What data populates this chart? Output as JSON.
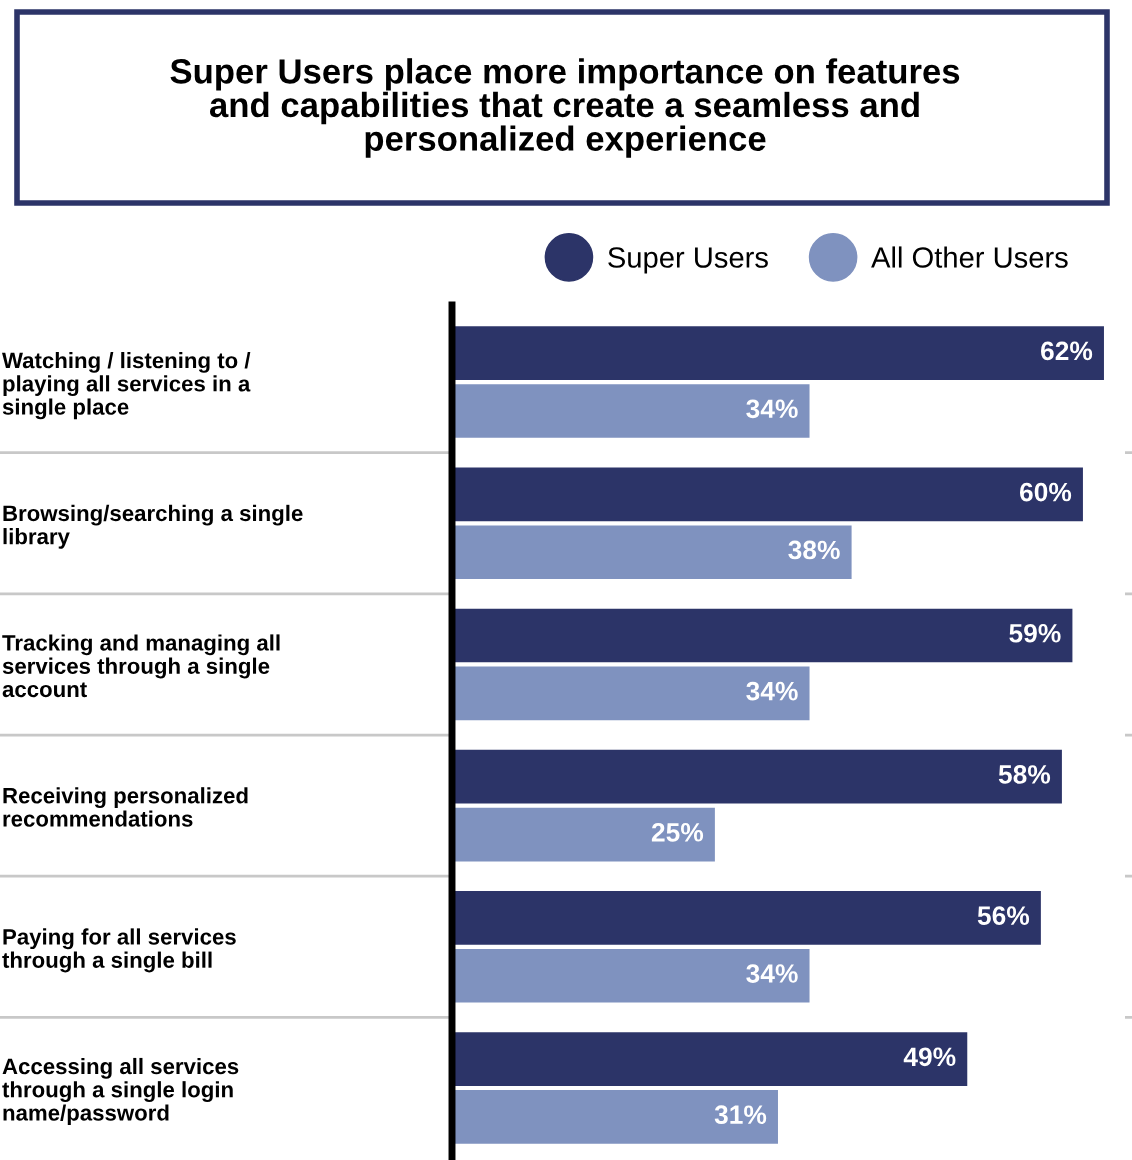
{
  "chart_data": {
    "type": "bar",
    "orientation": "horizontal",
    "title": "Super Users place more importance on features\nand capabilities that create a seamless and\npersonalized experience",
    "categories": [
      "Watching / listening to /\nplaying all services in a\nsingle place",
      "Browsing/searching a single\nlibrary",
      "Tracking and managing all\nservices through a single\naccount",
      "Receiving personalized\nrecommendations",
      "Paying for all services\nthrough a single bill",
      "Accessing all services\nthrough a single login\nname/password"
    ],
    "series": [
      {
        "name": "Super Users",
        "color": "#2c3468",
        "values": [
          62,
          60,
          59,
          58,
          56,
          49
        ],
        "value_labels": [
          "62%",
          "60%",
          "59%",
          "58%",
          "56%",
          "49%"
        ]
      },
      {
        "name": "All Other Users",
        "color": "#7f92bf",
        "values": [
          34,
          38,
          34,
          25,
          34,
          31
        ],
        "value_labels": [
          "34%",
          "38%",
          "34%",
          "25%",
          "34%",
          "31%"
        ]
      }
    ],
    "xlim": [
      0,
      64
    ],
    "tick_labels": "y",
    "legend": "top",
    "grid": false
  }
}
